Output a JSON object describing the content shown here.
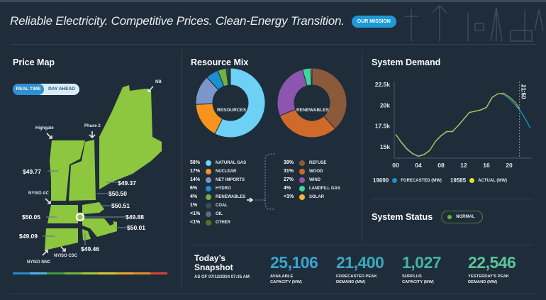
{
  "header": {
    "tagline": "Reliable Electricity. Competitive Prices. Clean-Energy Transition.",
    "mission_button": "OUR MISSION"
  },
  "price_map": {
    "title": "Price Map",
    "toggle": [
      "REAL TIME",
      "DAY AHEAD"
    ],
    "active": "REAL TIME",
    "map_color": "#8dc63f",
    "interfaces": [
      "NB",
      "Phase 2",
      "Highgate",
      "NYISO AC",
      "NYISO NNC",
      "NYISO CSC"
    ],
    "prices": [
      "$49.77",
      "$49.37",
      "$50.50",
      "$50.51",
      "$50.05",
      "$49.88",
      "$50.01",
      "$49.09",
      "$49.46"
    ],
    "scale_colors": [
      "#2a86c7",
      "#4fb3e8",
      "#3c9a3a",
      "#6fb63e",
      "#a7c53a",
      "#d9c92f",
      "#e9a92b",
      "#e88a2a",
      "#d8453a"
    ]
  },
  "resource_mix": {
    "title": "Resource Mix",
    "resources": {
      "label": "RESOURCES",
      "items": [
        {
          "pct": "58%",
          "name": "NATURAL GAS",
          "value": 58,
          "color": "#6dd0f5"
        },
        {
          "pct": "17%",
          "name": "NUCLEAR",
          "value": 17,
          "color": "#f7941d"
        },
        {
          "pct": "14%",
          "name": "NET IMPORTS",
          "value": 14,
          "color": "#7b96c9"
        },
        {
          "pct": "6%",
          "name": "HYDRO",
          "value": 6,
          "color": "#1b8fd2"
        },
        {
          "pct": "4%",
          "name": "RENEWABLES",
          "value": 4,
          "color": "#6db33f"
        },
        {
          "pct": "1%",
          "name": "COAL",
          "value": 1,
          "color": "#3d4a54"
        },
        {
          "pct": "<1%",
          "name": "OIL",
          "value": 0.5,
          "color": "#5f6d75"
        },
        {
          "pct": "<1%",
          "name": "OTHER",
          "value": 0.5,
          "color": "#4a7a1e"
        }
      ]
    },
    "renewables": {
      "label": "RENEWABLES",
      "items": [
        {
          "pct": "39%",
          "name": "REFUSE",
          "value": 39,
          "color": "#8a5a3b"
        },
        {
          "pct": "31%",
          "name": "WOOD",
          "value": 31,
          "color": "#cf6a2a"
        },
        {
          "pct": "27%",
          "name": "WIND",
          "value": 27,
          "color": "#8e55b0"
        },
        {
          "pct": "4%",
          "name": "LANDFILL GAS",
          "value": 4,
          "color": "#3ed69b"
        },
        {
          "pct": "<1%",
          "name": "SOLAR",
          "value": 0.5,
          "color": "#f9b233"
        }
      ]
    }
  },
  "system_demand": {
    "title": "System Demand",
    "chart_data": {
      "type": "line",
      "xlim": [
        0,
        24
      ],
      "ylim": [
        14000,
        23000
      ],
      "xticks": [
        "00",
        "04",
        "08",
        "12",
        "16",
        "20"
      ],
      "yticks": [
        "22.5k",
        "20k",
        "17.5k",
        "15k"
      ],
      "marker": "21:50",
      "series": [
        {
          "name": "FORECASTED (MW)",
          "color": "#1b8fd2",
          "x": [
            0,
            1,
            2,
            3,
            4,
            5,
            6,
            7,
            8,
            9,
            10,
            11,
            12,
            13,
            14,
            15,
            16,
            17,
            18,
            19,
            20,
            21,
            22,
            23,
            23.75
          ],
          "values": [
            16500,
            15600,
            14800,
            14200,
            13900,
            14100,
            14600,
            15600,
            16300,
            16800,
            16900,
            17500,
            18300,
            19100,
            19300,
            19400,
            19700,
            20900,
            21400,
            21300,
            20800,
            20100,
            19300,
            18200,
            17200
          ]
        },
        {
          "name": "ACTUAL (MW)",
          "color": "#e8e020",
          "x": [
            0,
            1,
            2,
            3,
            4,
            5,
            6,
            7,
            8,
            9,
            10,
            11,
            12,
            13,
            14,
            15,
            16,
            17,
            18,
            19,
            20,
            21,
            21.83
          ],
          "values": [
            16500,
            15500,
            14700,
            14150,
            13850,
            14050,
            14550,
            15650,
            16350,
            16850,
            16800,
            17550,
            18350,
            19150,
            19250,
            19450,
            19750,
            20950,
            21350,
            21450,
            21000,
            20400,
            19600
          ]
        }
      ]
    },
    "legend": [
      {
        "value": "19690",
        "label": "FORECASTED (MW)",
        "color": "#1b8fd2"
      },
      {
        "value": "19585",
        "label": "ACTUAL (MW)",
        "color": "#e8e020"
      }
    ]
  },
  "system_status": {
    "title": "System Status",
    "status": "NORMAL",
    "color": "#6db33f"
  },
  "snapshot": {
    "title_1": "Today’s",
    "title_2": "Snapshot",
    "as_of": "AS OF 07/12/2024 07:35 AM",
    "stats": [
      {
        "value": "25,106",
        "label_1": "AVAILABLE",
        "label_2": "CAPACITY (MW)",
        "color": "#3aa3cf"
      },
      {
        "value": "21,400",
        "label_1": "FORECASTED PEAK",
        "label_2": "DEMAND (MW)",
        "color": "#3aa9c0"
      },
      {
        "value": "1,027",
        "label_1": "SURPLUS",
        "label_2": "CAPACITY (MW)",
        "color": "#45b3a8"
      },
      {
        "value": "22,546",
        "label_1": "YESTERDAY'S PEAK",
        "label_2": "DEMAND (MW)",
        "color": "#5cc49a"
      }
    ]
  }
}
